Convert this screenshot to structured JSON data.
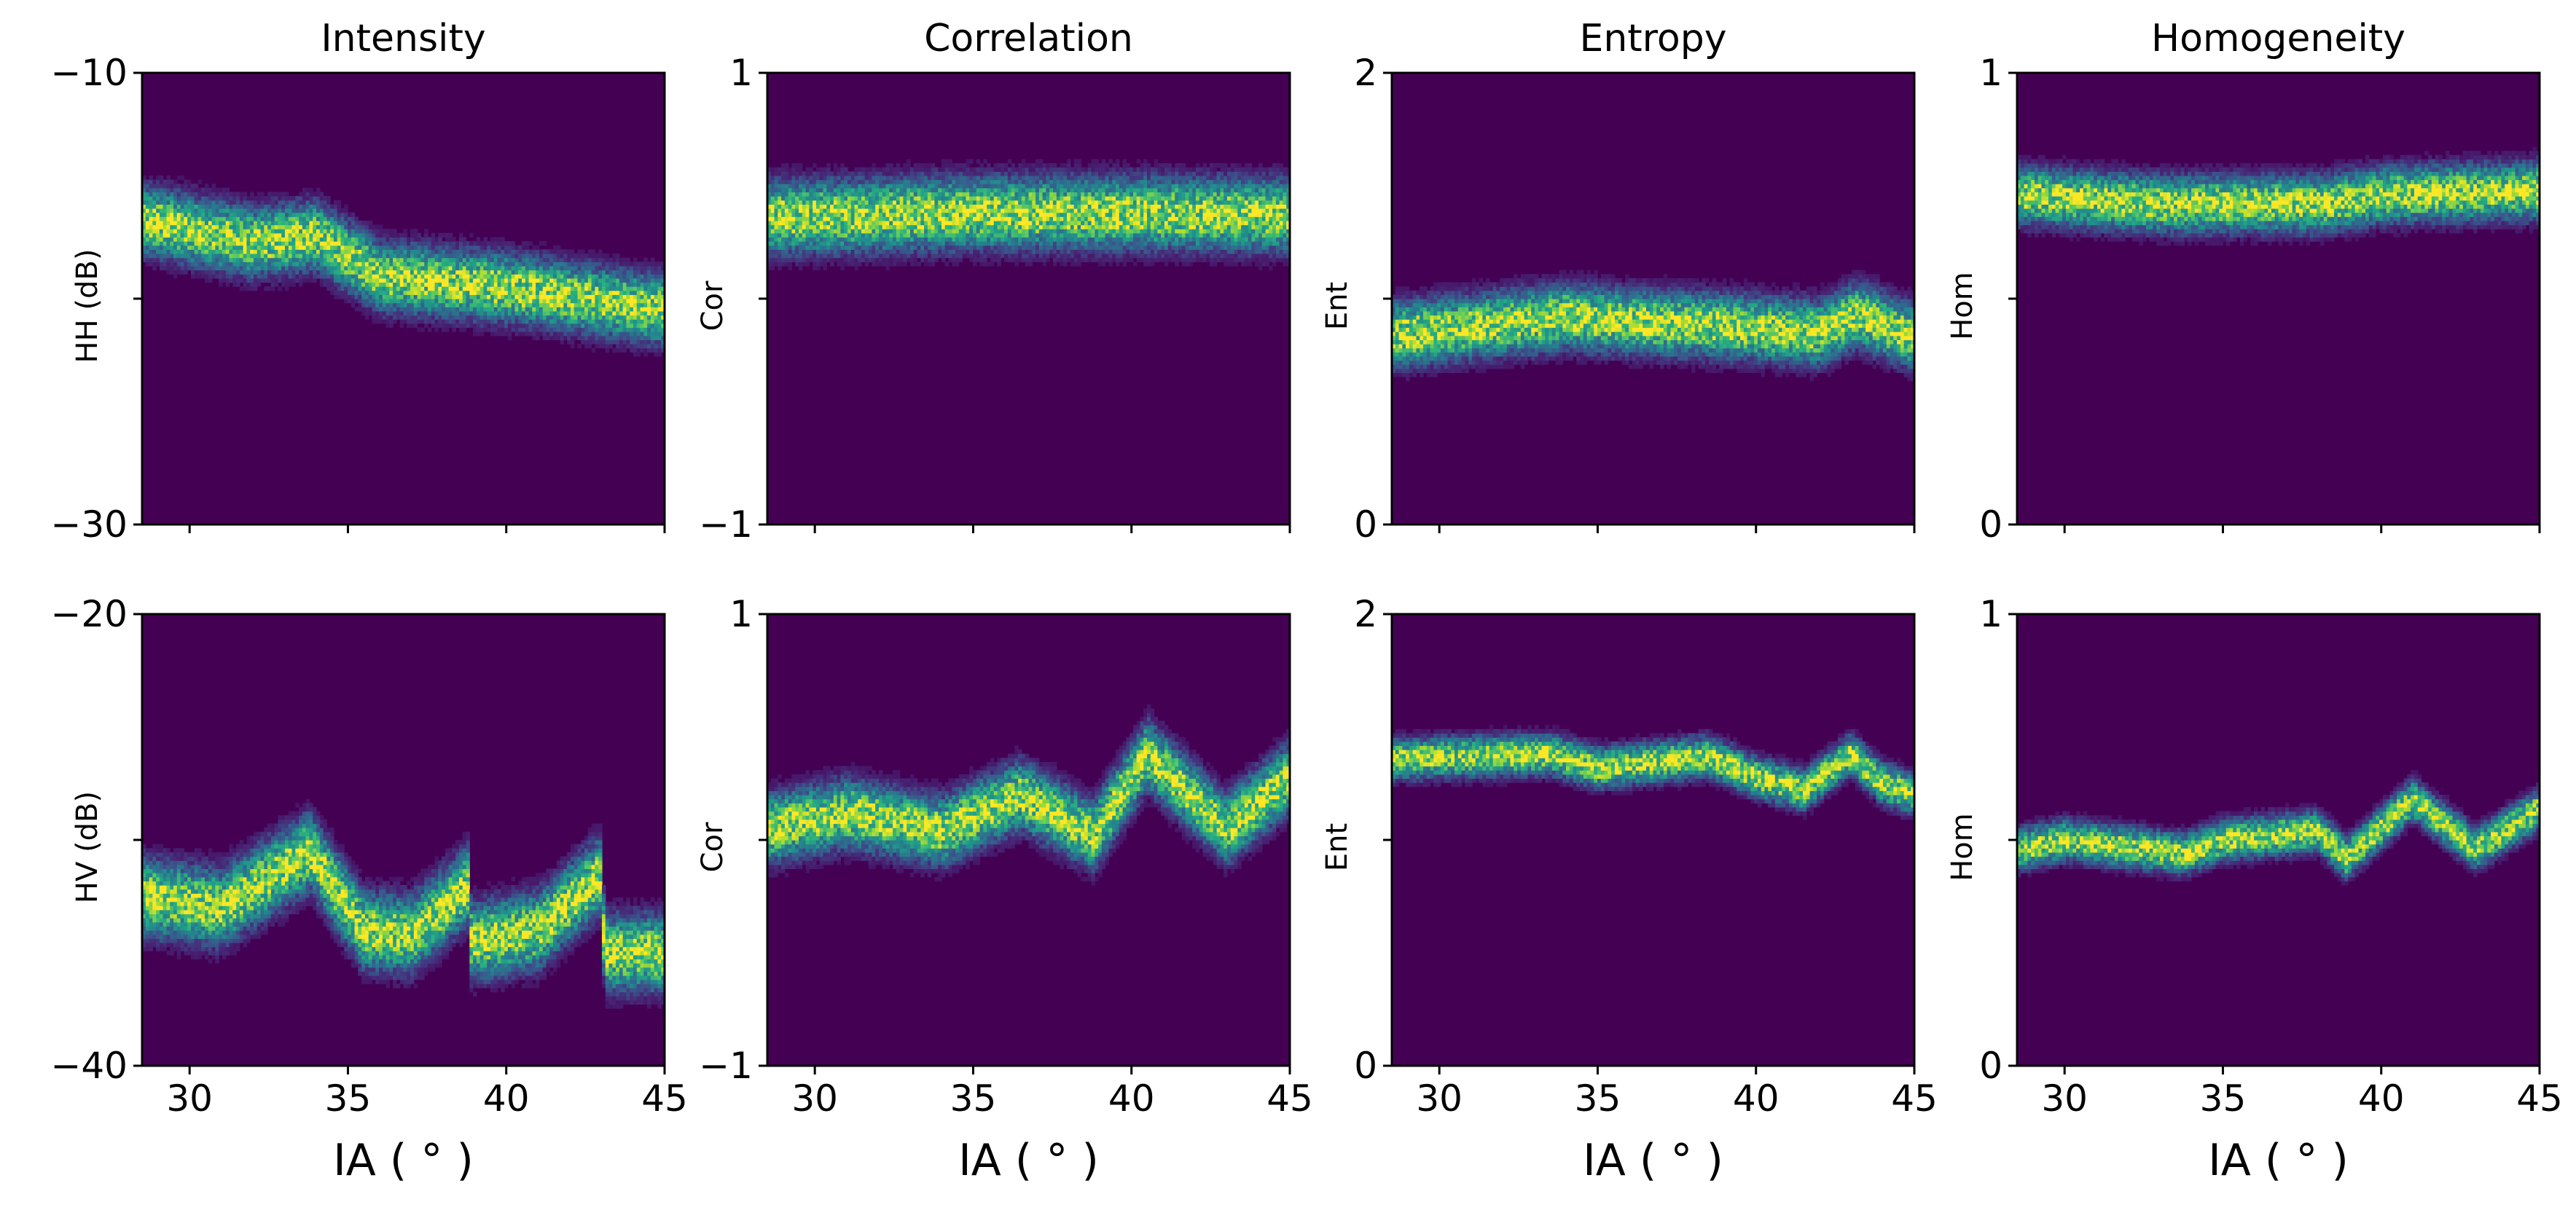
{
  "chart_data": [
    {
      "type": "heatmap",
      "title": "Intensity",
      "ylabel": "HH (dB)",
      "xlabel": "",
      "xlim": [
        28.5,
        45
      ],
      "ylim": [
        -30,
        -10
      ],
      "xticks": [
        30,
        35,
        40,
        45
      ],
      "yticks": [
        -10,
        -20,
        -30
      ],
      "ytick_labels": [
        "−10",
        "",
        "−30"
      ],
      "xtick_labels": [],
      "band_center": [
        [
          28.5,
          -16.5
        ],
        [
          32,
          -17.5
        ],
        [
          34,
          -17.2
        ],
        [
          36,
          -19
        ],
        [
          40,
          -19.5
        ],
        [
          42.5,
          -20
        ],
        [
          45,
          -20.5
        ]
      ],
      "band_spread": 1.7
    },
    {
      "type": "heatmap",
      "title": "Correlation",
      "ylabel": "Cor",
      "xlabel": "",
      "xlim": [
        28.5,
        45
      ],
      "ylim": [
        -1,
        1
      ],
      "xticks": [
        30,
        35,
        40,
        45
      ],
      "yticks": [
        1,
        0,
        -1
      ],
      "ytick_labels": [
        "1",
        "",
        "−1"
      ],
      "xtick_labels": [],
      "band_center": [
        [
          28.5,
          0.36
        ],
        [
          35,
          0.38
        ],
        [
          40,
          0.38
        ],
        [
          45,
          0.37
        ]
      ],
      "band_spread": 0.18
    },
    {
      "type": "heatmap",
      "title": "Entropy",
      "ylabel": "Ent",
      "xlabel": "",
      "xlim": [
        28.5,
        45
      ],
      "ylim": [
        0,
        2
      ],
      "xticks": [
        30,
        35,
        40,
        45
      ],
      "yticks": [
        2,
        1,
        0
      ],
      "ytick_labels": [
        "2",
        "",
        "0"
      ],
      "xtick_labels": [],
      "band_center": [
        [
          28.5,
          0.84
        ],
        [
          34,
          0.92
        ],
        [
          36,
          0.9
        ],
        [
          39,
          0.88
        ],
        [
          42,
          0.85
        ],
        [
          43.2,
          0.93
        ],
        [
          45,
          0.83
        ]
      ],
      "band_spread": 0.16
    },
    {
      "type": "heatmap",
      "title": "Homogeneity",
      "ylabel": "Hom",
      "xlabel": "",
      "xlim": [
        28.5,
        45
      ],
      "ylim": [
        0,
        1
      ],
      "xticks": [
        30,
        35,
        40,
        45
      ],
      "yticks": [
        1,
        0.5,
        0
      ],
      "ytick_labels": [
        "1",
        "",
        "0"
      ],
      "xtick_labels": [],
      "band_center": [
        [
          28.5,
          0.73
        ],
        [
          33,
          0.71
        ],
        [
          38,
          0.71
        ],
        [
          40,
          0.73
        ],
        [
          45,
          0.74
        ]
      ],
      "band_spread": 0.07
    },
    {
      "type": "heatmap",
      "title": "",
      "ylabel": "HV (dB)",
      "xlabel": "IA ( ° )",
      "xlim": [
        28.5,
        45
      ],
      "ylim": [
        -40,
        -20
      ],
      "xticks": [
        30,
        35,
        40,
        45
      ],
      "yticks": [
        -20,
        -30,
        -40
      ],
      "ytick_labels": [
        "−20",
        "",
        "−40"
      ],
      "xtick_labels": [
        "30",
        "35",
        "40",
        "45"
      ],
      "band_center": [
        [
          28.5,
          -32.5
        ],
        [
          31,
          -33
        ],
        [
          33.8,
          -30.5
        ],
        [
          35.5,
          -34
        ],
        [
          37,
          -34.2
        ],
        [
          38.8,
          -32
        ],
        [
          38.9,
          -34.5
        ],
        [
          41,
          -34
        ],
        [
          43,
          -31.5
        ],
        [
          43.1,
          -35
        ],
        [
          45,
          -35
        ]
      ],
      "band_spread": 1.9
    },
    {
      "type": "heatmap",
      "title": "",
      "ylabel": "Cor",
      "xlabel": "IA ( ° )",
      "xlim": [
        28.5,
        45
      ],
      "ylim": [
        -1,
        1
      ],
      "xticks": [
        30,
        35,
        40,
        45
      ],
      "yticks": [
        1,
        0,
        -1
      ],
      "ytick_labels": [
        "1",
        "",
        "−1"
      ],
      "xtick_labels": [
        "30",
        "35",
        "40",
        "45"
      ],
      "band_center": [
        [
          28.5,
          0.05
        ],
        [
          31,
          0.12
        ],
        [
          34,
          0.04
        ],
        [
          36.5,
          0.2
        ],
        [
          38.8,
          0.02
        ],
        [
          40.5,
          0.38
        ],
        [
          43,
          0.05
        ],
        [
          45,
          0.28
        ]
      ],
      "band_spread": 0.17
    },
    {
      "type": "heatmap",
      "title": "",
      "ylabel": "Ent",
      "xlabel": "IA ( ° )",
      "xlim": [
        28.5,
        45
      ],
      "ylim": [
        0,
        2
      ],
      "xticks": [
        30,
        35,
        40,
        45
      ],
      "yticks": [
        2,
        1,
        0
      ],
      "ytick_labels": [
        "2",
        "",
        "0"
      ],
      "xtick_labels": [
        "30",
        "35",
        "40",
        "45"
      ],
      "band_center": [
        [
          28.5,
          1.36
        ],
        [
          33.5,
          1.38
        ],
        [
          35,
          1.32
        ],
        [
          38.5,
          1.37
        ],
        [
          40,
          1.28
        ],
        [
          41.5,
          1.22
        ],
        [
          43,
          1.38
        ],
        [
          44,
          1.25
        ],
        [
          45,
          1.2
        ]
      ],
      "band_spread": 0.1
    },
    {
      "type": "heatmap",
      "title": "",
      "ylabel": "Hom",
      "xlabel": "IA ( ° )",
      "xlim": [
        28.5,
        45
      ],
      "ylim": [
        0,
        1
      ],
      "xticks": [
        30,
        35,
        40,
        45
      ],
      "yticks": [
        1,
        0.5,
        0
      ],
      "ytick_labels": [
        "1",
        "",
        "0"
      ],
      "xtick_labels": [
        "30",
        "35",
        "40",
        "45"
      ],
      "band_center": [
        [
          28.5,
          0.48
        ],
        [
          30,
          0.5
        ],
        [
          33.8,
          0.47
        ],
        [
          35,
          0.5
        ],
        [
          38,
          0.52
        ],
        [
          38.9,
          0.46
        ],
        [
          41,
          0.59
        ],
        [
          43,
          0.48
        ],
        [
          45,
          0.57
        ]
      ],
      "band_spread": 0.05
    }
  ],
  "colors": {
    "background": "#440154",
    "mid": "#21918c",
    "high": "#fde725"
  }
}
